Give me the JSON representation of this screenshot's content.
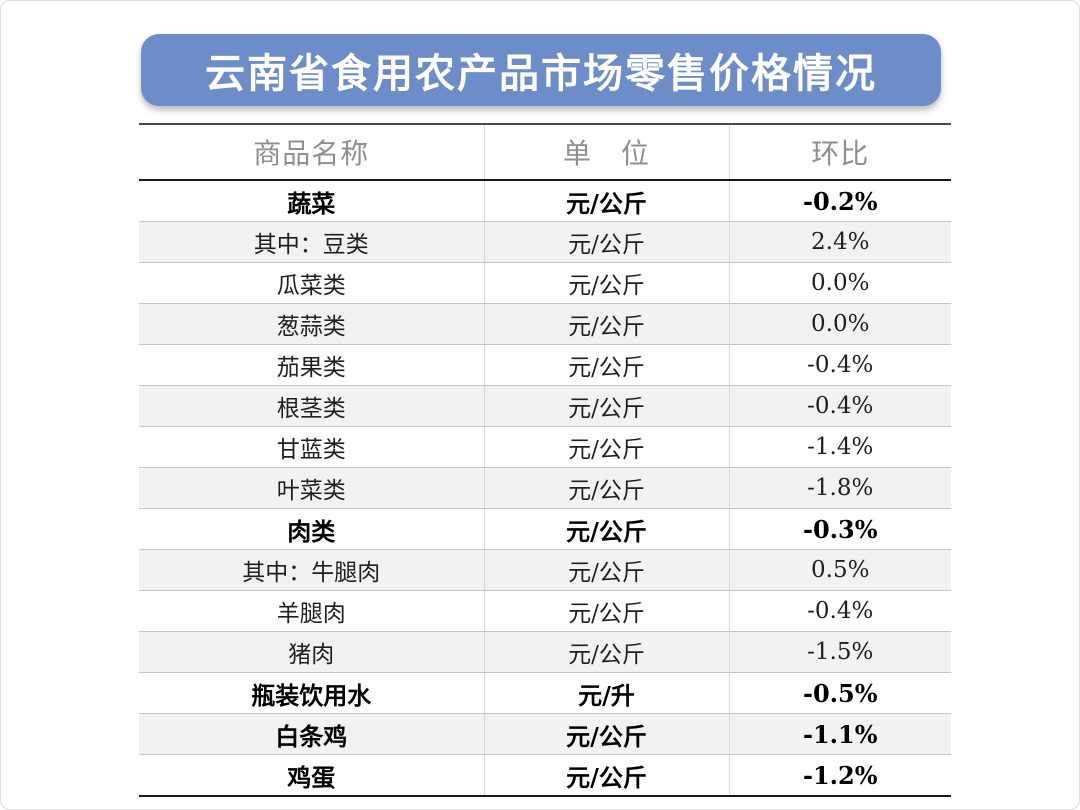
{
  "banner": {
    "title": "云南省食用农产品市场零售价格情况"
  },
  "colors": {
    "banner_blue": "#6d8dc9",
    "stripe_gray": "#f2f2f2",
    "header_text_gray": "#8f8f8f"
  },
  "chart_data": {
    "type": "table",
    "title": "云南省食用农产品市场零售价格情况",
    "columns": [
      "商品名称",
      "单　位",
      "环比"
    ],
    "rows": [
      {
        "name": "蔬菜",
        "unit": "元/公斤",
        "change": "-0.2%",
        "emphasis": true
      },
      {
        "name": "其中：豆类",
        "unit": "元/公斤",
        "change": "2.4%",
        "emphasis": false
      },
      {
        "name": "瓜菜类",
        "unit": "元/公斤",
        "change": "0.0%",
        "emphasis": false
      },
      {
        "name": "葱蒜类",
        "unit": "元/公斤",
        "change": "0.0%",
        "emphasis": false
      },
      {
        "name": "茄果类",
        "unit": "元/公斤",
        "change": "-0.4%",
        "emphasis": false
      },
      {
        "name": "根茎类",
        "unit": "元/公斤",
        "change": "-0.4%",
        "emphasis": false
      },
      {
        "name": "甘蓝类",
        "unit": "元/公斤",
        "change": "-1.4%",
        "emphasis": false
      },
      {
        "name": "叶菜类",
        "unit": "元/公斤",
        "change": "-1.8%",
        "emphasis": false
      },
      {
        "name": "肉类",
        "unit": "元/公斤",
        "change": "-0.3%",
        "emphasis": true
      },
      {
        "name": "其中：牛腿肉",
        "unit": "元/公斤",
        "change": "0.5%",
        "emphasis": false
      },
      {
        "name": "羊腿肉",
        "unit": "元/公斤",
        "change": "-0.4%",
        "emphasis": false
      },
      {
        "name": "猪肉",
        "unit": "元/公斤",
        "change": "-1.5%",
        "emphasis": false
      },
      {
        "name": "瓶装饮用水",
        "unit": "元/升",
        "change": "-0.5%",
        "emphasis": true
      },
      {
        "name": "白条鸡",
        "unit": "元/公斤",
        "change": "-1.1%",
        "emphasis": true
      },
      {
        "name": "鸡蛋",
        "unit": "元/公斤",
        "change": "-1.2%",
        "emphasis": true
      }
    ]
  }
}
